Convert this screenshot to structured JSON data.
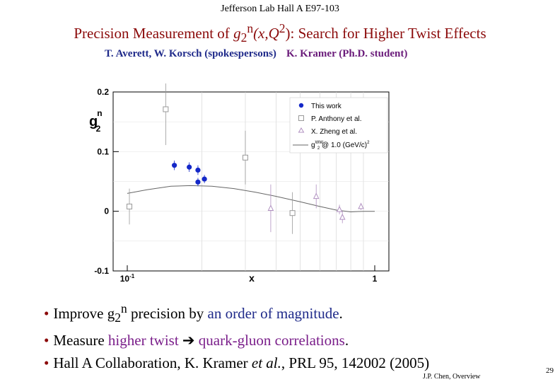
{
  "header": {
    "experiment": "Jefferson Lab Hall A E97-103"
  },
  "title": {
    "prefix": "Precision Measurement of ",
    "g": "g",
    "sub": "2",
    "sup": "n",
    "args": "(x,Q",
    "q_sup": "2",
    "suffix": "): Search for Higher Twist Effects"
  },
  "authors": {
    "spokespersons": "T. Averett, W. Korsch (spokespersons)",
    "student": "K. Kramer (Ph.D. student)"
  },
  "chart_data": {
    "type": "scatter",
    "xscale": "log",
    "xlim": [
      0.1,
      1.0
    ],
    "ylim": [
      -0.1,
      0.2
    ],
    "xlabel": "x",
    "ylabel": {
      "g": "g",
      "sup": "n",
      "sub": "2"
    },
    "x_ticks": [
      {
        "value": 0.1,
        "label": "10",
        "exp": "-1"
      },
      {
        "value": 1.0,
        "label": "1",
        "exp": ""
      }
    ],
    "y_ticks": [
      {
        "value": 0.2,
        "label": "0.2"
      },
      {
        "value": 0.1,
        "label": "0.1"
      },
      {
        "value": 0,
        "label": "0"
      },
      {
        "value": -0.1,
        "label": "-0.1"
      }
    ],
    "legend_position": "top-right",
    "legend": [
      {
        "label": "This work",
        "marker": "filled-circle",
        "color": "#1428c8"
      },
      {
        "label": "P. Anthony et al.",
        "marker": "open-square",
        "color": "#999999"
      },
      {
        "label": "X. Zheng et al.",
        "marker": "open-triangle",
        "color": "#b090c0"
      },
      {
        "label_g": "g",
        "label_sup": "WW",
        "label_sub": "2",
        "label_rest": " @ 1.0 (GeV/c)",
        "label_rest_sup": "2",
        "marker": "line",
        "color": "#666666"
      }
    ],
    "series": [
      {
        "name": "This work",
        "marker": "filled-circle",
        "color": "#1428c8",
        "points": [
          {
            "x": 0.155,
            "y": 0.077,
            "err": 0.008
          },
          {
            "x": 0.178,
            "y": 0.074,
            "err": 0.008
          },
          {
            "x": 0.193,
            "y": 0.069,
            "err": 0.008
          },
          {
            "x": 0.205,
            "y": 0.054,
            "err": 0.007
          },
          {
            "x": 0.193,
            "y": 0.049,
            "err": 0.007
          }
        ]
      },
      {
        "name": "P. Anthony et al.",
        "marker": "open-square",
        "color": "#999999",
        "points": [
          {
            "x": 0.102,
            "y": 0.008,
            "err": 0.03
          },
          {
            "x": 0.143,
            "y": 0.171,
            "err": 0.06
          },
          {
            "x": 0.3,
            "y": 0.09,
            "err": 0.045
          },
          {
            "x": 0.465,
            "y": -0.003,
            "err": 0.035
          }
        ]
      },
      {
        "name": "X. Zheng et al.",
        "marker": "open-triangle",
        "color": "#b090c0",
        "points": [
          {
            "x": 0.38,
            "y": 0.005,
            "err": 0.04
          },
          {
            "x": 0.58,
            "y": 0.025,
            "err": 0.02
          },
          {
            "x": 0.72,
            "y": 0.003,
            "err": 0.008
          },
          {
            "x": 0.74,
            "y": -0.01,
            "err": 0.01
          },
          {
            "x": 0.88,
            "y": 0.008,
            "err": 0.006
          }
        ]
      },
      {
        "name": "g2WW @ 1.0 (GeV/c)2",
        "marker": "line",
        "color": "#666666",
        "points": [
          {
            "x": 0.1,
            "y": 0.03
          },
          {
            "x": 0.12,
            "y": 0.036
          },
          {
            "x": 0.15,
            "y": 0.042
          },
          {
            "x": 0.18,
            "y": 0.043
          },
          {
            "x": 0.22,
            "y": 0.042
          },
          {
            "x": 0.27,
            "y": 0.038
          },
          {
            "x": 0.33,
            "y": 0.032
          },
          {
            "x": 0.4,
            "y": 0.025
          },
          {
            "x": 0.5,
            "y": 0.016
          },
          {
            "x": 0.6,
            "y": 0.008
          },
          {
            "x": 0.7,
            "y": 0.002
          },
          {
            "x": 0.8,
            "y": -0.001
          },
          {
            "x": 0.9,
            "y": 0.0
          },
          {
            "x": 1.0,
            "y": 0.0
          }
        ]
      }
    ]
  },
  "bullets": [
    {
      "t1": "Improve g",
      "sub": "2",
      "sup": "n",
      "t2": " precision by ",
      "hl": "an order of magnitude",
      "t3": "."
    },
    {
      "t1": "Measure ",
      "hl1": "higher twist",
      "arrow": "➔",
      "hl2": "quark-gluon correlations",
      "t3": "."
    },
    {
      "t1": "Hall A Collaboration, K. Kramer ",
      "it": "et al.",
      "t2": ",  PRL 95, 142002 (2005)"
    }
  ],
  "footer": {
    "presenter": "J.P. Chen, Overview",
    "page": "29"
  }
}
